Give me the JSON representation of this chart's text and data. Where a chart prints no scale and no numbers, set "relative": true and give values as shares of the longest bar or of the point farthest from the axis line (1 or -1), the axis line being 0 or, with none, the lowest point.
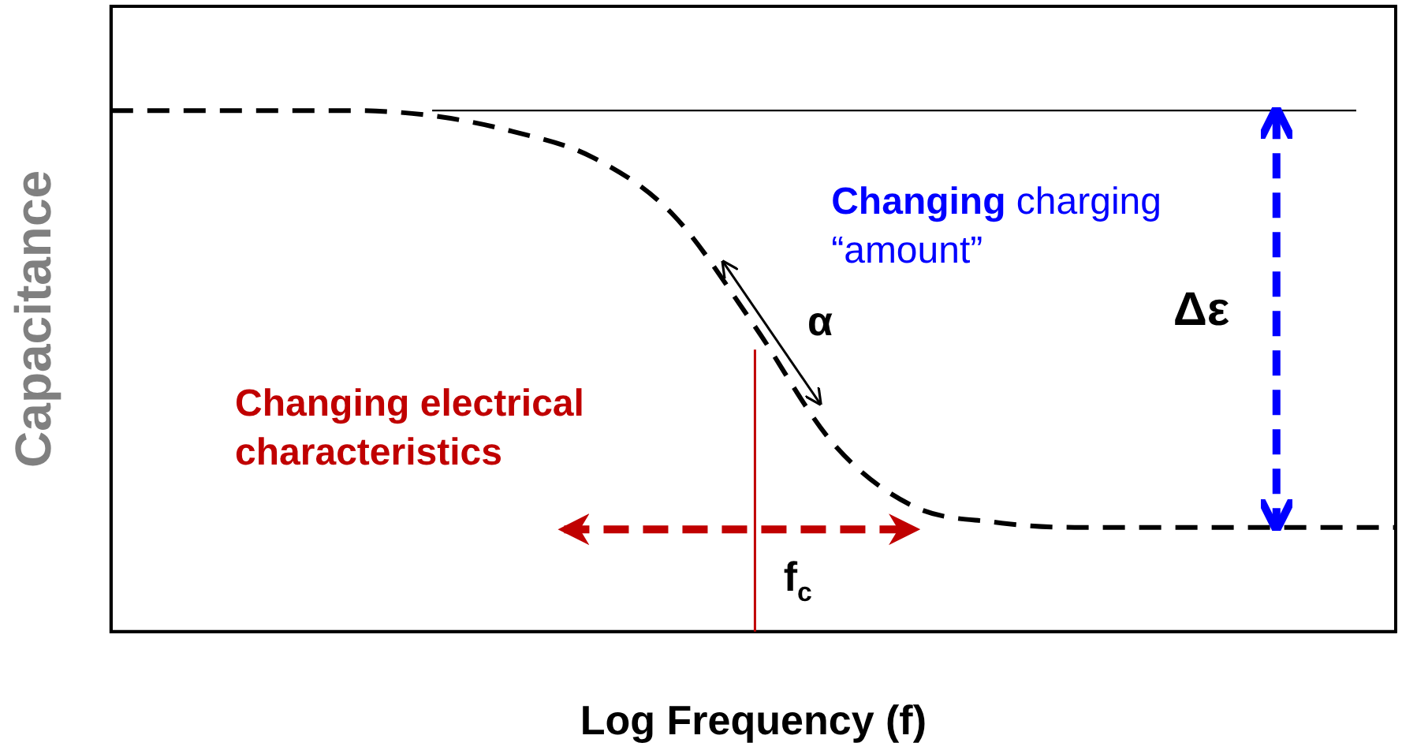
{
  "chart_data": {
    "type": "line",
    "xlabel": "Log Frequency (f)",
    "ylabel": "Capacitance",
    "relative": true,
    "categories": [
      null,
      null,
      null,
      null,
      null,
      null,
      null,
      null,
      null,
      null,
      null,
      null,
      null,
      null,
      null,
      null,
      null
    ],
    "series": [
      {
        "color": "#000000",
        "values": [
          1.0,
          1.0,
          1.0,
          1.0,
          0.99,
          0.96,
          0.91,
          0.8,
          0.59,
          0.36,
          0.24,
          0.21,
          0.2,
          0.2,
          0.2,
          0.2,
          0.2
        ]
      }
    ],
    "line_style": "dashed",
    "marker": "none",
    "grid": false,
    "legend": false,
    "ref_lines": [
      {
        "axis": "y",
        "value": 1,
        "color": "#000000",
        "line_style": "solid"
      }
    ],
    "annotations": [
      "Changing electrical characteristics",
      "Changing charging “amount”",
      "Δε",
      "α",
      "f$_{c}$"
    ]
  }
}
